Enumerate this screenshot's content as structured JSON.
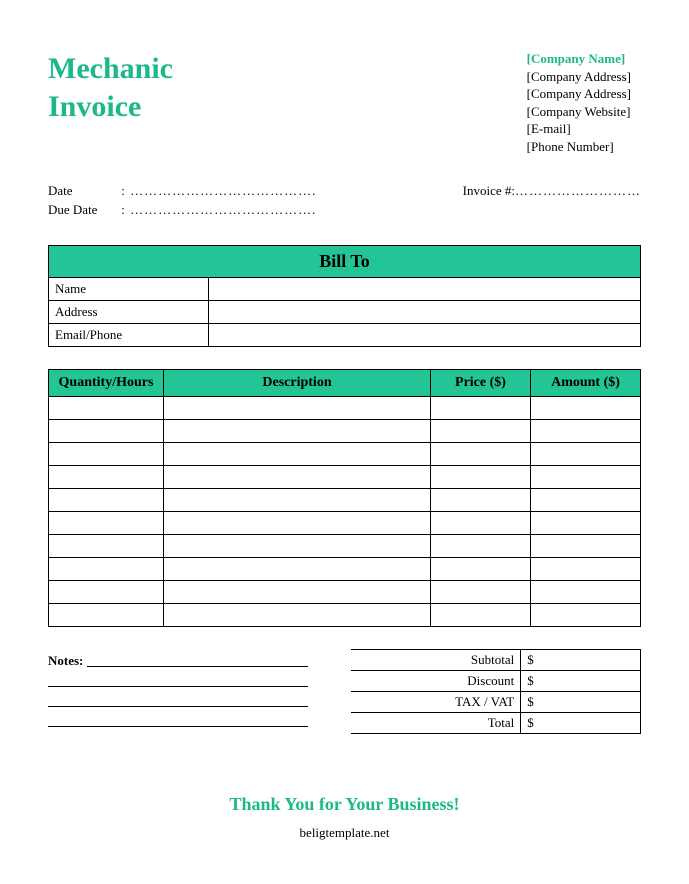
{
  "colors": {
    "accent": "#1db88a",
    "header_bg": "#23c495",
    "border": "#000000",
    "background": "#ffffff",
    "text": "#000000"
  },
  "title": {
    "line1": "Mechanic",
    "line2": "Invoice",
    "fontsize": 30
  },
  "company": {
    "name": "[Company Name]",
    "address1": "[Company Address]",
    "address2": "[Company Address]",
    "website": "[Company Website]",
    "email": "[E-mail]",
    "phone": "[Phone Number]"
  },
  "meta": {
    "date_label": "Date",
    "due_date_label": "Due Date",
    "invoice_num_label": "Invoice #:",
    "dots": ": ………………………………….",
    "dots_short": "………………………"
  },
  "bill_to": {
    "header": "Bill To",
    "rows": [
      {
        "label": "Name",
        "value": ""
      },
      {
        "label": "Address",
        "value": ""
      },
      {
        "label": "Email/Phone",
        "value": ""
      }
    ]
  },
  "items": {
    "columns": [
      "Quantity/Hours",
      "Description",
      "Price ($)",
      "Amount ($)"
    ],
    "row_count": 10
  },
  "notes": {
    "label": "Notes:",
    "line_count": 4
  },
  "totals": {
    "rows": [
      {
        "label": "Subtotal",
        "value": "$"
      },
      {
        "label": "Discount",
        "value": "$"
      },
      {
        "label": "TAX / VAT",
        "value": "$"
      },
      {
        "label": "Total",
        "value": "$"
      }
    ]
  },
  "thanks": "Thank You for Your Business!",
  "footer": "beligtemplate.net"
}
